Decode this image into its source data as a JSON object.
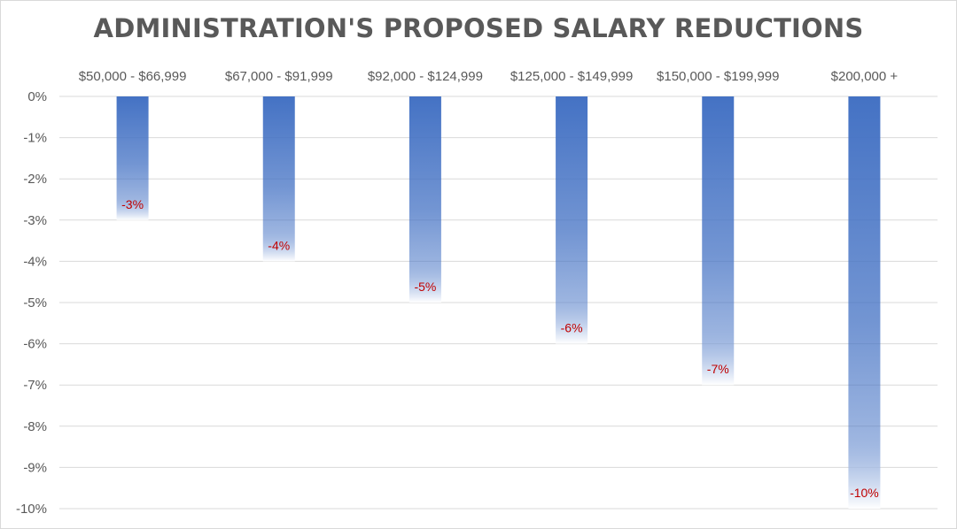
{
  "chart_data": {
    "type": "bar",
    "title": "ADMINISTRATION'S PROPOSED SALARY REDUCTIONS",
    "categories": [
      "$50,000 - $66,999",
      "$67,000 - $91,999",
      "$92,000 - $124,999",
      "$125,000 - $149,999",
      "$150,000 - $199,999",
      "$200,000 +"
    ],
    "values": [
      -3,
      -4,
      -5,
      -6,
      -7,
      -10
    ],
    "data_labels": [
      "-3%",
      "-4%",
      "-5%",
      "-6%",
      "-7%",
      "-10%"
    ],
    "y_ticks": [
      0,
      -1,
      -2,
      -3,
      -4,
      -5,
      -6,
      -7,
      -8,
      -9,
      -10
    ],
    "y_tick_labels": [
      "0%",
      "-1%",
      "-2%",
      "-3%",
      "-4%",
      "-5%",
      "-6%",
      "-7%",
      "-8%",
      "-9%",
      "-10%"
    ],
    "ylim": [
      -10,
      0
    ],
    "xlabel": "",
    "ylabel": "",
    "grid": true,
    "category_axis_position": "top",
    "colors": {
      "bar": "#4472c4",
      "bar_fade": "#ffffff",
      "label": "#c00000",
      "grid": "#d9d9d9",
      "text": "#595959"
    }
  }
}
